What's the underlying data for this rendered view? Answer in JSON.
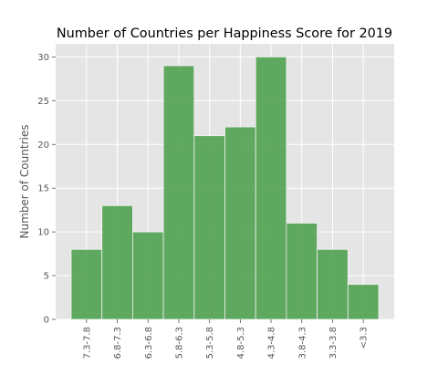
{
  "chart_data": {
    "type": "bar",
    "title": "Number of Countries per Happiness Score for 2019",
    "xlabel": "",
    "ylabel": "Number of Countries",
    "categories": [
      "7.3-7.8",
      "6.8-7.3",
      "6.3-6.8",
      "5.8-6.3",
      "5.3-5.8",
      "4.8-5.3",
      "4.3-4.8",
      "3.8-4.3",
      "3.3-3.8",
      "<3.3"
    ],
    "values": [
      8,
      13,
      10,
      29,
      21,
      22,
      30,
      11,
      8,
      4
    ],
    "ylim": [
      0,
      31.5
    ],
    "yticks": [
      0,
      5,
      10,
      15,
      20,
      25,
      30
    ],
    "grid": true,
    "colors": {
      "bar": "#4c9f4c",
      "plot_background": "#e5e5e5",
      "grid": "#ffffff"
    }
  }
}
